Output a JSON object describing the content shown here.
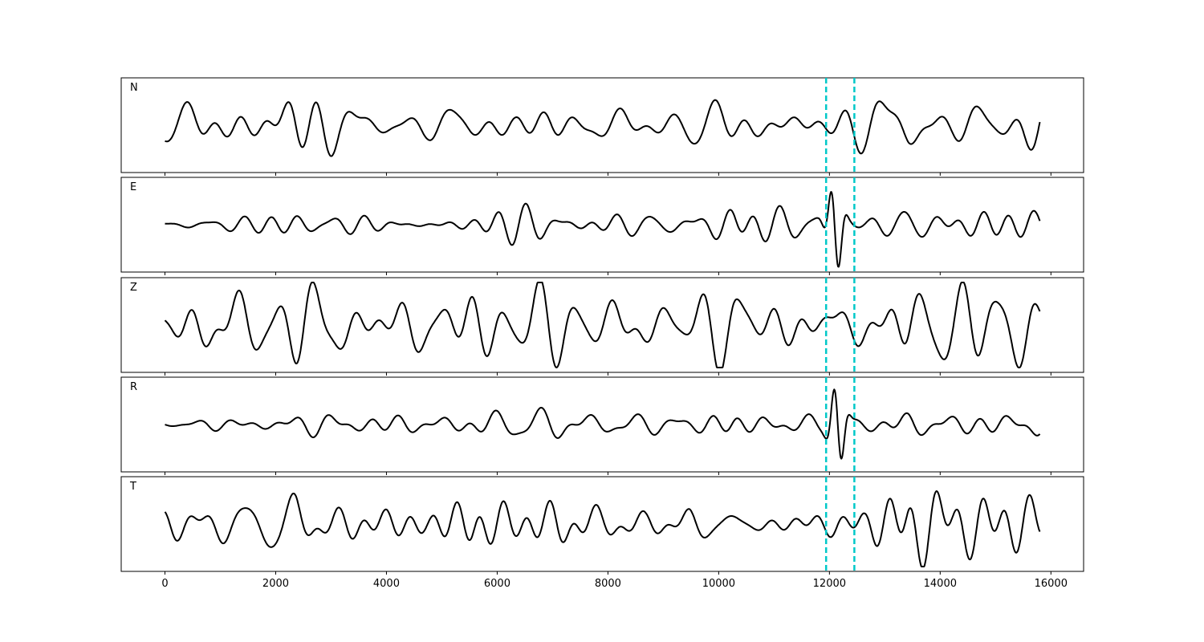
{
  "chart_data": {
    "type": "line",
    "title": "",
    "xlabel": "",
    "ylabel": "",
    "xlim": [
      -790,
      16590
    ],
    "x_range_data": [
      0,
      15800
    ],
    "xticks": [
      0,
      2000,
      4000,
      6000,
      8000,
      10000,
      12000,
      14000,
      16000
    ],
    "grid": false,
    "shared_x": true,
    "y_ticks_shown": false,
    "line_color": "#000000",
    "marker_color": "#00c8c8",
    "vertical_markers": [
      11940,
      12450
    ],
    "panels": [
      {
        "label": "N",
        "envelope": [
          0.35,
          0.45,
          0.55,
          0.85,
          0.45,
          0.4,
          0.3,
          0.45,
          0.3,
          0.35,
          0.3,
          0.3,
          0.55,
          0.45,
          0.35,
          0.3,
          0.45,
          0.8,
          0.45,
          0.6
        ],
        "pulse": null
      },
      {
        "label": "E",
        "envelope": [
          0.08,
          0.12,
          0.12,
          0.2,
          0.25,
          0.25,
          0.2,
          0.2,
          0.3,
          0.25,
          0.22,
          0.2,
          0.25,
          0.35,
          0.25,
          0.2,
          0.12,
          0.3,
          0.3,
          0.3
        ],
        "pulse": {
          "x": 12100,
          "amp": 1.0
        }
      },
      {
        "label": "Z",
        "envelope": [
          0.65,
          0.7,
          0.65,
          0.75,
          0.7,
          0.55,
          0.6,
          0.7,
          0.75,
          0.6,
          0.5,
          0.45,
          0.55,
          0.75,
          0.55,
          0.5,
          0.55,
          0.85,
          0.6,
          0.9
        ],
        "pulse": null
      },
      {
        "label": "R",
        "envelope": [
          0.05,
          0.15,
          0.15,
          0.25,
          0.3,
          0.3,
          0.25,
          0.3,
          0.3,
          0.3,
          0.25,
          0.2,
          0.25,
          0.45,
          0.3,
          0.2,
          0.2,
          0.35,
          0.3,
          0.35
        ],
        "pulse": {
          "x": 12150,
          "amp": 0.95
        }
      },
      {
        "label": "T",
        "envelope": [
          0.4,
          0.5,
          0.55,
          1.0,
          0.55,
          0.4,
          0.3,
          0.55,
          0.4,
          0.45,
          0.3,
          0.3,
          0.6,
          0.45,
          0.4,
          0.35,
          0.4,
          0.85,
          0.55,
          0.6
        ],
        "pulse": null
      }
    ]
  }
}
